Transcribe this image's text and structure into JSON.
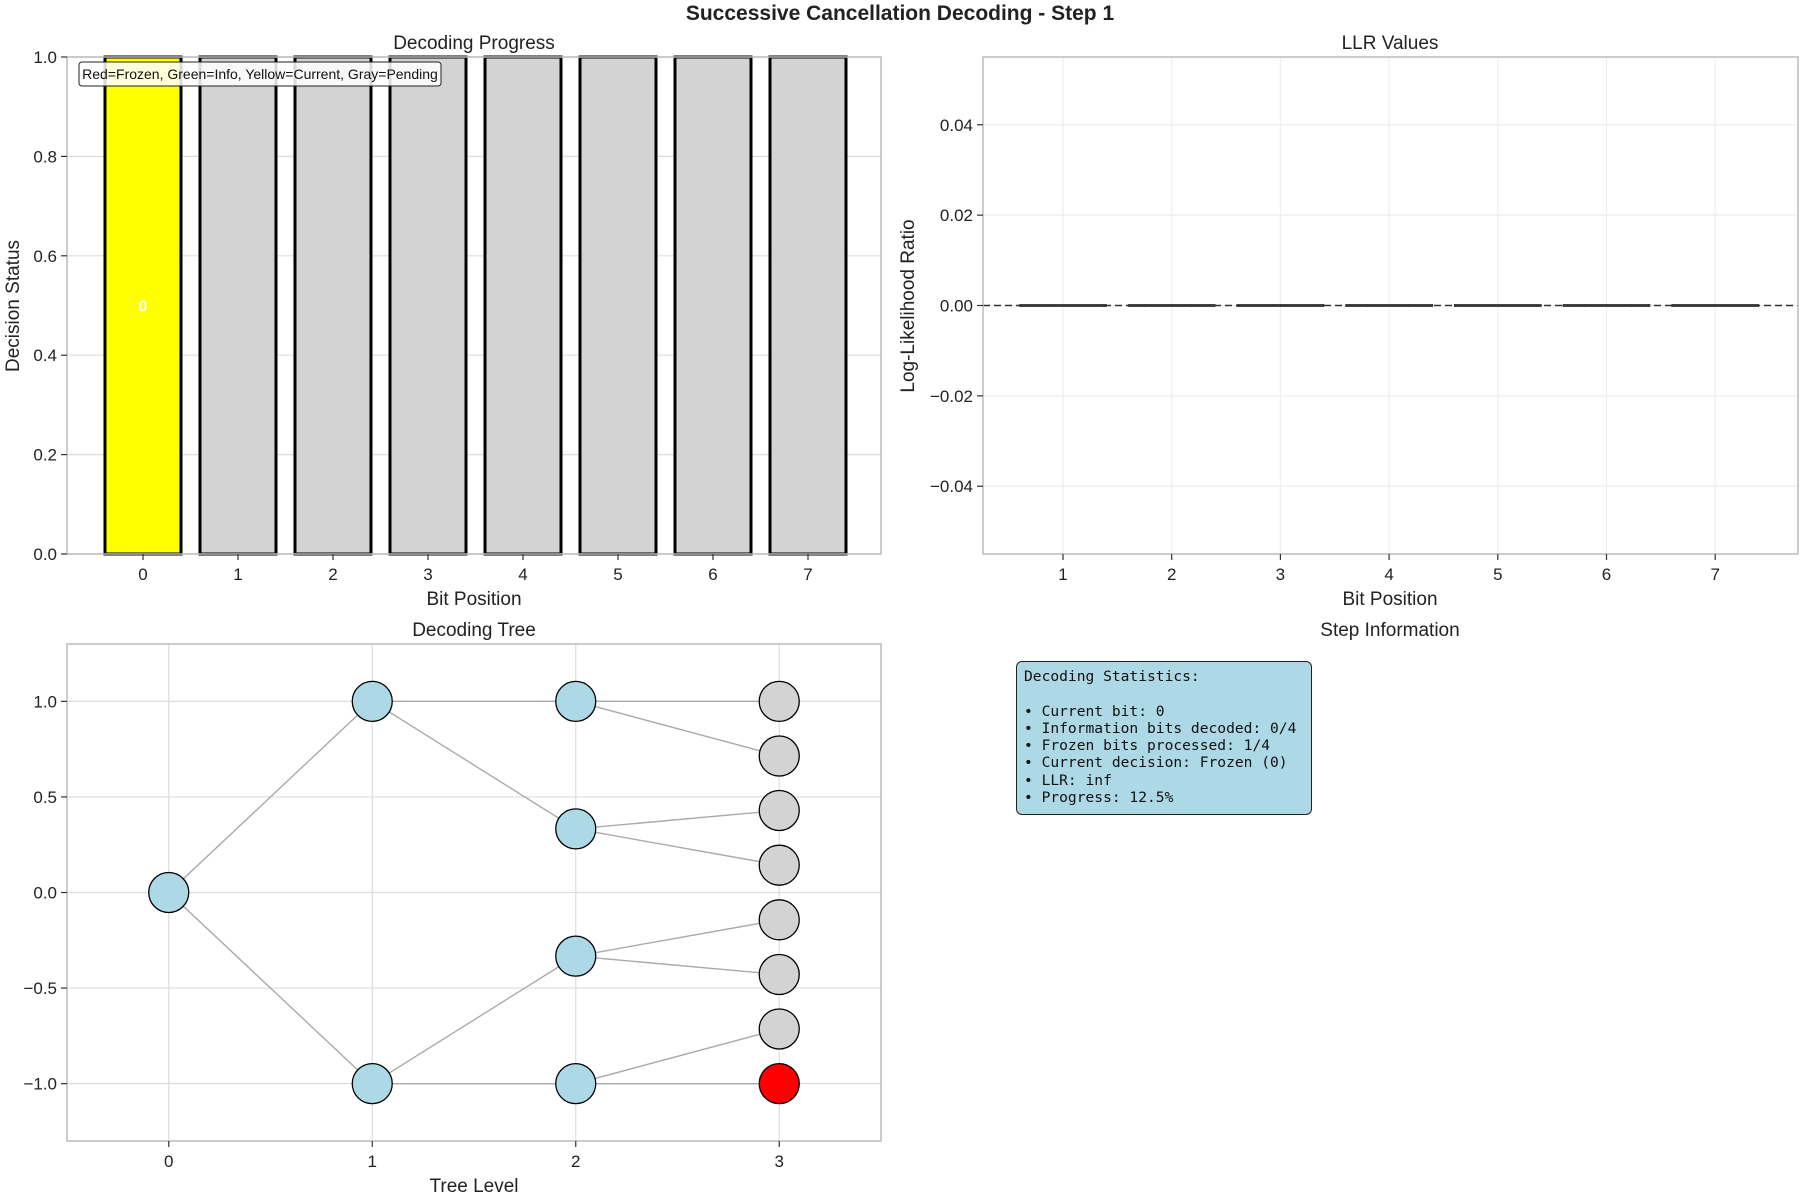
{
  "title": "Successive Cancellation Decoding - Step 1",
  "colors": {
    "frozen": "#ff0000",
    "info": "#00b000",
    "current": "#ffff00",
    "pending": "#d3d3d3",
    "tree_node": "#add8e6",
    "info_box": "#add8e6"
  },
  "chart_data": [
    {
      "type": "bar",
      "title": "Decoding Progress",
      "xlabel": "Bit Position",
      "ylabel": "Decision Status",
      "categories": [
        "0",
        "1",
        "2",
        "3",
        "4",
        "5",
        "6",
        "7"
      ],
      "values": [
        1,
        1,
        1,
        1,
        1,
        1,
        1,
        1
      ],
      "status": [
        "current",
        "pending",
        "pending",
        "pending",
        "pending",
        "pending",
        "pending",
        "pending"
      ],
      "bar_labels": [
        "0",
        "",
        "",
        "",
        "",
        "",
        "",
        ""
      ],
      "ylim": [
        0,
        1.0
      ],
      "yticks": [
        "0.0",
        "0.2",
        "0.4",
        "0.6",
        "0.8",
        "1.0"
      ],
      "legend_text": "Red=Frozen, Green=Info, Yellow=Current, Gray=Pending",
      "legend_position": "top-left",
      "grid": true
    },
    {
      "type": "bar",
      "title": "LLR Values",
      "xlabel": "Bit Position",
      "ylabel": "Log-Likelihood Ratio",
      "categories": [
        "1",
        "2",
        "3",
        "4",
        "5",
        "6",
        "7"
      ],
      "values": [
        0,
        0,
        0,
        0,
        0,
        0,
        0
      ],
      "ylim": [
        -0.055,
        0.055
      ],
      "yticks": [
        "−0.04",
        "−0.02",
        "0.00",
        "0.02",
        "0.04"
      ],
      "reference_line": 0,
      "grid": true
    },
    {
      "type": "scatter",
      "title": "Decoding Tree",
      "xlabel": "Tree Level",
      "ylabel": "",
      "xlim": [
        -0.5,
        3.5
      ],
      "ylim": [
        -1.3,
        1.3
      ],
      "xticks": [
        "0",
        "1",
        "2",
        "3"
      ],
      "yticks": [
        "−1.0",
        "−0.5",
        "0.0",
        "0.5",
        "1.0"
      ],
      "nodes": [
        {
          "x": 0,
          "y": 0,
          "status": "node"
        },
        {
          "x": 1,
          "y": 1,
          "status": "node"
        },
        {
          "x": 1,
          "y": -1,
          "status": "node"
        },
        {
          "x": 2,
          "y": 1,
          "status": "node"
        },
        {
          "x": 2,
          "y": 0.333,
          "status": "node"
        },
        {
          "x": 2,
          "y": -0.333,
          "status": "node"
        },
        {
          "x": 2,
          "y": -1,
          "status": "node"
        },
        {
          "x": 3,
          "y": 1,
          "status": "pending"
        },
        {
          "x": 3,
          "y": 0.714,
          "status": "pending"
        },
        {
          "x": 3,
          "y": 0.429,
          "status": "pending"
        },
        {
          "x": 3,
          "y": 0.143,
          "status": "pending"
        },
        {
          "x": 3,
          "y": -0.143,
          "status": "pending"
        },
        {
          "x": 3,
          "y": -0.429,
          "status": "pending"
        },
        {
          "x": 3,
          "y": -0.714,
          "status": "pending"
        },
        {
          "x": 3,
          "y": -1,
          "status": "frozen"
        }
      ],
      "edges": [
        [
          0,
          1
        ],
        [
          0,
          2
        ],
        [
          1,
          3
        ],
        [
          1,
          4
        ],
        [
          2,
          5
        ],
        [
          2,
          6
        ],
        [
          3,
          7
        ],
        [
          3,
          8
        ],
        [
          4,
          9
        ],
        [
          4,
          10
        ],
        [
          5,
          11
        ],
        [
          5,
          12
        ],
        [
          6,
          13
        ],
        [
          6,
          14
        ]
      ],
      "grid": true
    }
  ],
  "info_panel": {
    "title": "Step Information",
    "lines": [
      "Decoding Statistics:",
      "",
      "• Current bit: 0",
      "• Information bits decoded: 0/4",
      "• Frozen bits processed: 1/4",
      "• Current decision: Frozen (0)",
      "• LLR: inf",
      "• Progress: 12.5%"
    ]
  }
}
